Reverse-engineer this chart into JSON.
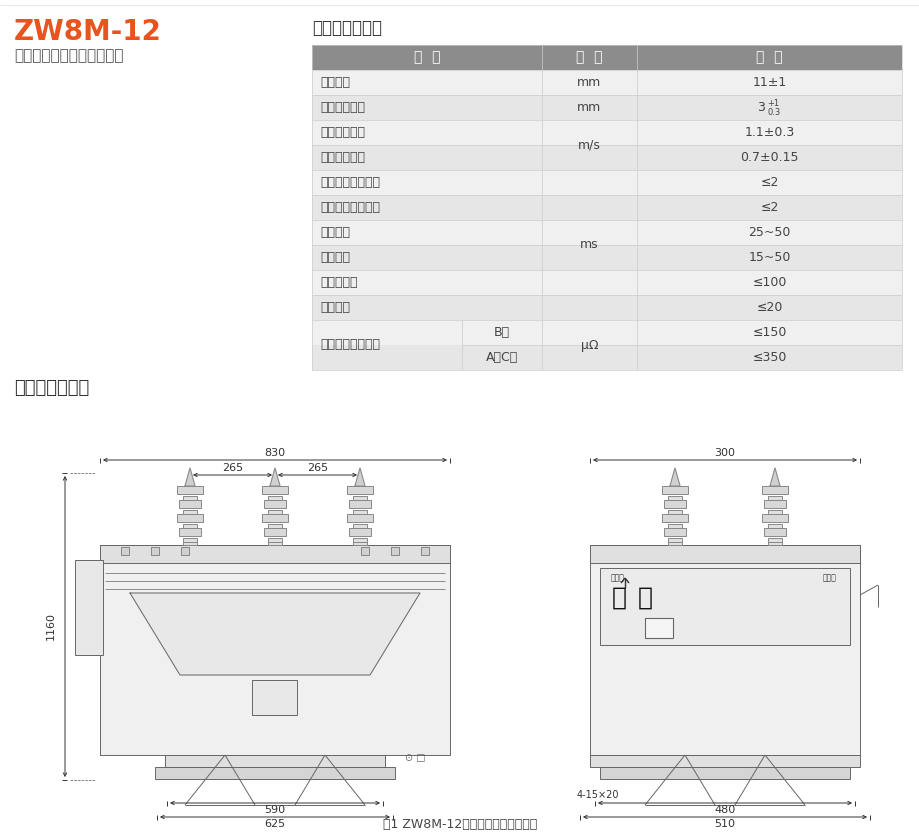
{
  "title_main": "ZW8M-12",
  "title_sub": "户外永磁式高压真空断路器",
  "table_title": "机械特性参数表",
  "diagram_title": "外形及安装尺寸",
  "caption": "图1 ZW8M-12户外永磁式真空断路器",
  "header_bg": "#8c8c8c",
  "row_bg_odd": "#f0f0f0",
  "row_bg_even": "#e6e6e6",
  "title_color": "#e8531e",
  "text_color": "#444444",
  "border_color": "#cccccc",
  "col_header": [
    "名  称",
    "单  位",
    "数  据"
  ],
  "rows": [
    {
      "名称": "触头开距",
      "sub": "",
      "单位": "mm",
      "数据": "11±1"
    },
    {
      "名称": "触头接触行程",
      "sub": "",
      "单位": "mm",
      "数据": "3"
    },
    {
      "名称": "平均分闸速度",
      "sub": "",
      "单位": "m/s",
      "数据": "1.1±0.3"
    },
    {
      "名称": "平均合闸速度",
      "sub": "",
      "单位": "",
      "数据": "0.7±0.15"
    },
    {
      "名称": "触头合闸弹跳时间",
      "sub": "",
      "单位": "",
      "数据": "≤2"
    },
    {
      "名称": "三相分闸不同期性",
      "sub": "",
      "单位": "",
      "数据": "≤2"
    },
    {
      "名称": "合闸时间",
      "sub": "",
      "单位": "ms",
      "数据": "25~50"
    },
    {
      "名称": "分闸时间",
      "sub": "",
      "单位": "",
      "数据": "15~50"
    },
    {
      "名称": "全开断时间",
      "sub": "",
      "单位": "",
      "数据": "≤100"
    },
    {
      "名称": "燃弧时间",
      "sub": "",
      "单位": "",
      "数据": "≤20"
    },
    {
      "名称": "各相导电回路电阔",
      "sub": "B相",
      "单位": "μΩ",
      "数据": "≤150"
    },
    {
      "名称": "",
      "sub": "A、C相",
      "单位": "",
      "数据": "≤350"
    }
  ],
  "unit_merges": {
    "2-3": "m/s",
    "6-7": "ms",
    "10-11": "μΩ"
  },
  "background_color": "#ffffff"
}
